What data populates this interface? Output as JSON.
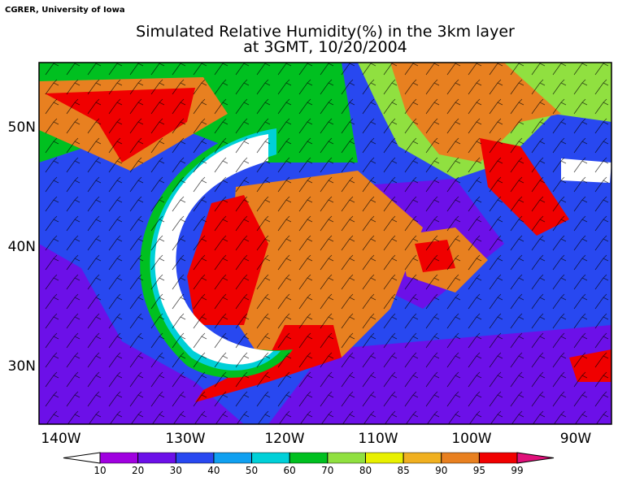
{
  "header": {
    "credit": "CGRER, University of Iowa",
    "title_line1": "Simulated Relative Humidity(%) in the 3km layer",
    "title_line2": "at 3GMT, 10/20/2004"
  },
  "map": {
    "lat_labels": [
      "50N",
      "40N",
      "30N"
    ],
    "lon_labels": [
      "140W",
      "130W",
      "120W",
      "110W",
      "100W",
      "90W"
    ]
  },
  "colorbar": {
    "levels": [
      10,
      20,
      30,
      40,
      50,
      60,
      70,
      80,
      85,
      90,
      95,
      99
    ],
    "colors": [
      "#ffffff",
      "#a000e0",
      "#6c10e8",
      "#2848f0",
      "#10a0f0",
      "#00d0d8",
      "#00c020",
      "#90e040",
      "#e8f000",
      "#f0b020",
      "#e88020",
      "#f00000",
      "#e0107a"
    ]
  }
}
